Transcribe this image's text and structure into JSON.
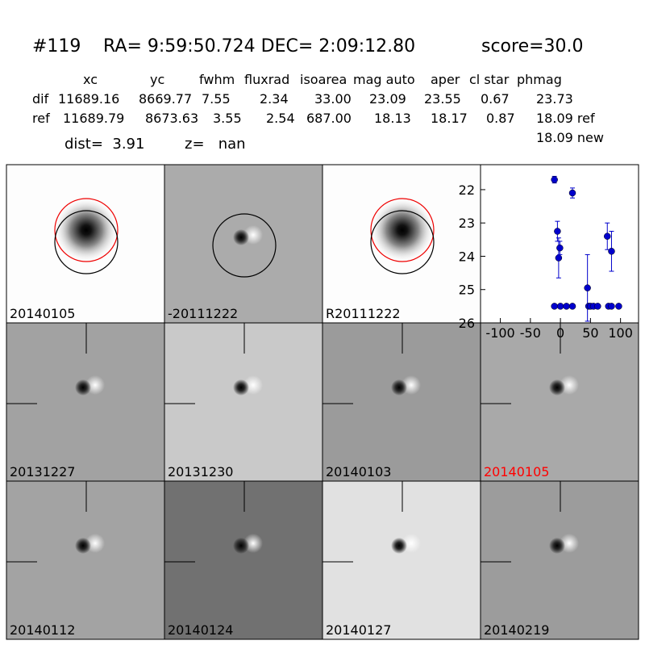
{
  "header": {
    "id": "#119",
    "coords": "RA= 9:59:50.724 DEC= 2:09:12.80",
    "score": "score=30.0"
  },
  "table": {
    "columns": [
      "xc",
      "yc",
      "fwhm",
      "fluxrad",
      "isoarea",
      "mag auto",
      "aper",
      "cl star",
      "phmag"
    ],
    "rows": [
      [
        "dif",
        "11689.16",
        "8669.77",
        "7.55",
        "2.34",
        "33.00",
        "23.09",
        "23.55",
        "0.67",
        "23.73"
      ],
      [
        "ref",
        "11689.79",
        "8673.63",
        "3.55",
        "2.54",
        "687.00",
        "18.13",
        "18.17",
        "0.87",
        "18.09 ref"
      ]
    ],
    "extra": "18.09 new"
  },
  "dist": "dist=  3.91",
  "z": "z=   nan",
  "panels": [
    {
      "label": "20140105"
    },
    {
      "label": "-20111222"
    },
    {
      "label": "R20111222"
    },
    {
      "label": "20131227"
    },
    {
      "label": "20131230"
    },
    {
      "label": "20140103"
    },
    {
      "label": "20140105",
      "label_color": "#ff0000"
    },
    {
      "label": "20140112"
    },
    {
      "label": "20140124"
    },
    {
      "label": "20140127"
    },
    {
      "label": "20140219"
    }
  ],
  "chart_data": {
    "type": "scatter",
    "series": [
      {
        "color": "#0000cc",
        "x": [
          -10,
          -5,
          -3,
          -1,
          -10,
          0,
          10,
          20,
          20,
          45,
          47,
          50,
          55,
          62,
          78,
          80,
          85,
          85,
          97
        ],
        "values": [
          21.7,
          23.25,
          24.05,
          23.75,
          25.5,
          25.5,
          25.5,
          25.5,
          22.1,
          24.95,
          25.5,
          25.5,
          25.5,
          25.5,
          23.4,
          25.5,
          23.85,
          25.5,
          25.5
        ],
        "errors": [
          0.1,
          0.3,
          0.6,
          0.2,
          null,
          null,
          null,
          null,
          0.15,
          1.0,
          null,
          null,
          null,
          null,
          0.4,
          null,
          0.6,
          null,
          null
        ]
      }
    ],
    "xlim": [
      -133,
      130
    ],
    "ylim": [
      26,
      21.25
    ],
    "xticks": [
      -100,
      -50,
      0,
      50,
      100
    ],
    "yticks": [
      22,
      23,
      24,
      25,
      26
    ]
  }
}
